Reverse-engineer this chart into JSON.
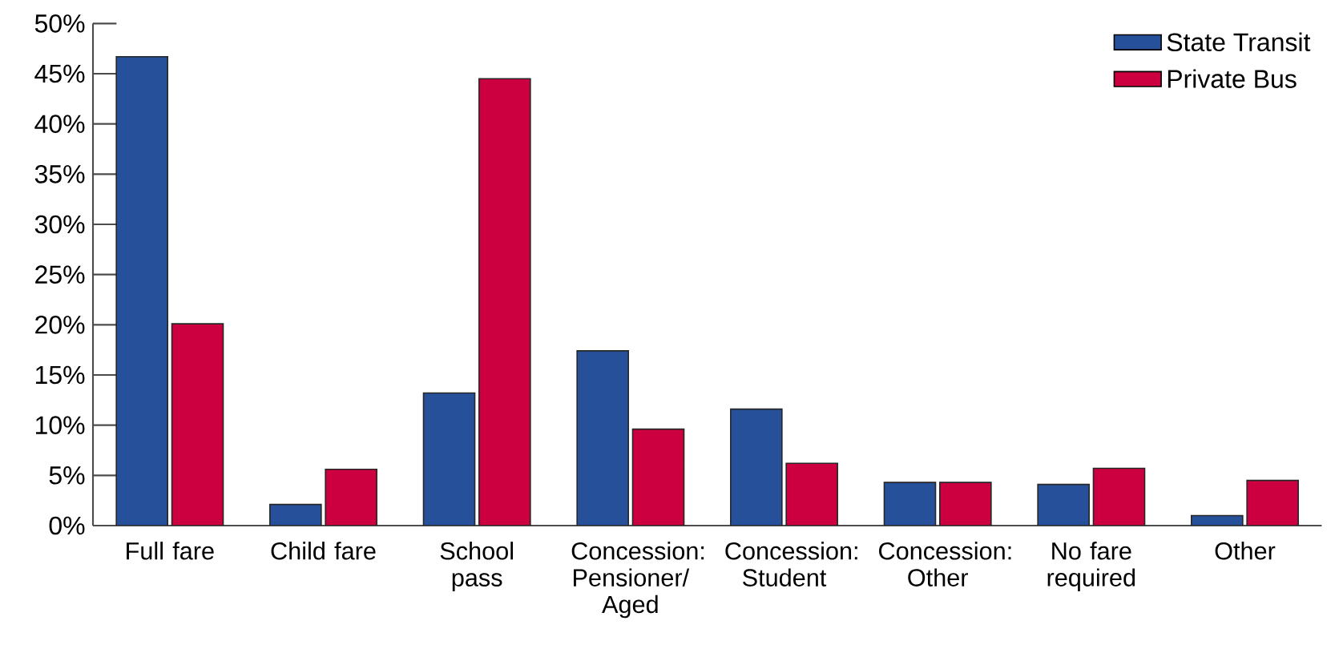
{
  "chart_data": {
    "type": "bar",
    "categories": [
      "Full fare",
      "Child fare",
      "School pass",
      "Concession: Pensioner/ Aged",
      "Concession: Student",
      "Concession: Other",
      "No fare required",
      "Other"
    ],
    "series": [
      {
        "name": "State Transit",
        "color": "#27509b",
        "values": [
          46.7,
          2.1,
          13.2,
          17.4,
          11.6,
          4.3,
          4.1,
          1.0
        ]
      },
      {
        "name": "Private Bus",
        "color": "#cc0040",
        "values": [
          20.1,
          5.6,
          44.5,
          9.6,
          6.2,
          4.3,
          5.7,
          4.5
        ]
      }
    ],
    "ylim": [
      0,
      50
    ],
    "yticks": [
      {
        "value": 0,
        "label": "0%"
      },
      {
        "value": 5,
        "label": "5%"
      },
      {
        "value": 10,
        "label": "10%"
      },
      {
        "value": 15,
        "label": "15%"
      },
      {
        "value": 20,
        "label": "20%"
      },
      {
        "value": 25,
        "label": "25%"
      },
      {
        "value": 30,
        "label": "30%"
      },
      {
        "value": 35,
        "label": "35%"
      },
      {
        "value": 40,
        "label": "40%"
      },
      {
        "value": 45,
        "label": "45%"
      },
      {
        "value": 50,
        "label": "50%"
      }
    ],
    "grid": false,
    "legend": "top right"
  }
}
